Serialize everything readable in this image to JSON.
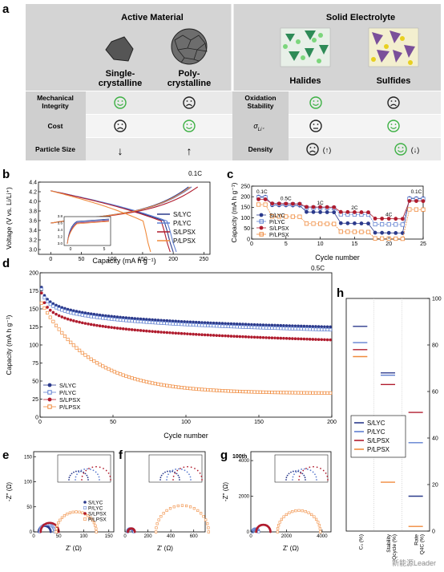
{
  "panel_a": {
    "label": "a",
    "active_material_header": "Active Material",
    "solid_electrolyte_header": "Solid Electrolyte",
    "col_single": "Single-\ncrystalline",
    "col_poly": "Poly-\ncrystalline",
    "col_halides": "Halides",
    "col_sulfides": "Sulfides",
    "rows_left": [
      {
        "label": "Mechanical\nIntegrity",
        "single": "happy",
        "poly": "sad"
      },
      {
        "label": "Cost",
        "single": "sad",
        "poly": "happy"
      },
      {
        "label": "Particle Size",
        "single": "↓",
        "poly": "↑"
      }
    ],
    "rows_right": [
      {
        "label": "Oxidation\nStability",
        "halides": "happy",
        "sulfides": "sad"
      },
      {
        "label": "σ",
        "sub": "Li⁺",
        "halides": "neutral",
        "sulfides": "happy"
      },
      {
        "label": "Density",
        "halides": "sad",
        "halides_note": "(↑)",
        "sulfides": "happy",
        "sulfides_note": "(↓)"
      }
    ],
    "colors": {
      "happy": "#3cb043",
      "header_bg": "#cfcfcf",
      "row_bg": "#e6e6e6"
    }
  },
  "chart_data": [
    {
      "panel": "b",
      "type": "line",
      "annotation": "0.1C",
      "xlabel": "Capacity (mA h g⁻¹)",
      "ylabel": "Voltage (V vs. Li/Li⁺)",
      "xlim": [
        -20,
        260
      ],
      "ylim": [
        2.9,
        4.4
      ],
      "xticks": [
        0,
        50,
        100,
        150,
        200,
        250
      ],
      "yticks": [
        3.0,
        3.2,
        3.4,
        3.6,
        3.8,
        4.0,
        4.2,
        4.4
      ],
      "series": [
        {
          "name": "S/LYC",
          "color": "#2b3a8c",
          "charge_end": 225,
          "discharge_end": 200
        },
        {
          "name": "P/LYC",
          "color": "#5f7fd0",
          "charge_end": 230,
          "discharge_end": 205
        },
        {
          "name": "S/LPSX",
          "color": "#b01c2e",
          "charge_end": 240,
          "discharge_end": 195
        },
        {
          "name": "P/LPSX",
          "color": "#f08a3c",
          "charge_end": 228,
          "discharge_end": 163
        }
      ],
      "inset": {
        "xticks": [
          0,
          5
        ],
        "yticks": [
          3.0,
          3.2,
          3.4,
          3.6,
          3.8
        ]
      }
    },
    {
      "panel": "c",
      "type": "scatter",
      "xlabel": "Cycle number",
      "ylabel": "Capacity (mA h g⁻¹)",
      "xlim": [
        0,
        25
      ],
      "ylim": [
        0,
        250
      ],
      "xticks": [
        0,
        5,
        10,
        15,
        20,
        25
      ],
      "yticks": [
        0,
        50,
        100,
        150,
        200,
        250
      ],
      "rate_labels": [
        {
          "text": "0.1C",
          "x": 1.5,
          "y": 215
        },
        {
          "text": "0.5C",
          "x": 5,
          "y": 183
        },
        {
          "text": "1C",
          "x": 10,
          "y": 162
        },
        {
          "text": "2C",
          "x": 15,
          "y": 140
        },
        {
          "text": "4C",
          "x": 20,
          "y": 108
        },
        {
          "text": "0.1C",
          "x": 24,
          "y": 215
        }
      ],
      "series": [
        {
          "name": "S/LYC",
          "color": "#2b3a8c",
          "marker": "filled-circle",
          "steps": [
            200,
            160,
            128,
            75,
            30,
            193
          ]
        },
        {
          "name": "P/LYC",
          "color": "#5f7fd0",
          "marker": "open-square",
          "steps": [
            197,
            165,
            148,
            117,
            70,
            190
          ]
        },
        {
          "name": "S/LPSX",
          "color": "#b01c2e",
          "marker": "filled-circle",
          "steps": [
            188,
            168,
            152,
            128,
            97,
            180
          ]
        },
        {
          "name": "P/LPSX",
          "color": "#f08a3c",
          "marker": "open-square",
          "steps": [
            163,
            107,
            73,
            35,
            3,
            140
          ]
        }
      ]
    },
    {
      "panel": "d",
      "type": "scatter",
      "annotation": "0.5C",
      "xlabel": "Cycle number",
      "ylabel": "Capacity (mA h g⁻¹)",
      "xlim": [
        0,
        200
      ],
      "ylim": [
        0,
        200
      ],
      "xticks": [
        0,
        50,
        100,
        150,
        200
      ],
      "yticks": [
        0,
        25,
        50,
        75,
        100,
        125,
        150,
        175,
        200
      ],
      "series": [
        {
          "name": "S/LYC",
          "color": "#2b3a8c",
          "marker": "filled-circle",
          "start": 180,
          "end": 125
        },
        {
          "name": "P/LYC",
          "color": "#5f7fd0",
          "marker": "open-square",
          "start": 177,
          "end": 121
        },
        {
          "name": "S/LPSX",
          "color": "#b01c2e",
          "marker": "filled-circle",
          "start": 172,
          "end": 107
        },
        {
          "name": "P/LPSX",
          "color": "#f08a3c",
          "marker": "open-square",
          "start": 158,
          "end": 33
        }
      ]
    },
    {
      "panel": "e",
      "type": "scatter",
      "annotation": "2nd",
      "xlabel": "Z' (Ω)",
      "ylabel": "-Z'' (Ω)",
      "xticks": [
        0,
        50,
        100,
        150
      ],
      "yticks": [
        0,
        50,
        100,
        150
      ],
      "series_names": [
        "S/LYC",
        "P/LYC",
        "S/LPSX",
        "P/LPSX"
      ]
    },
    {
      "panel": "f",
      "type": "scatter",
      "annotation": "10th",
      "xlabel": "Z' (Ω)",
      "ylabel": "-Z'' (Ω)",
      "xticks": [
        0,
        200,
        400,
        600
      ],
      "yticks": [
        0,
        200,
        400,
        600
      ]
    },
    {
      "panel": "g",
      "type": "scatter",
      "annotation": "100th",
      "xlabel": "Z' (Ω)",
      "ylabel": "-Z'' (Ω)",
      "xticks": [
        0,
        2000,
        4000
      ],
      "yticks": [
        0,
        2000,
        4000
      ]
    },
    {
      "panel": "h",
      "type": "line",
      "yticks": [
        0,
        20,
        40,
        60,
        80,
        100
      ],
      "categories": [
        "C₀ (%)",
        "Stability\nQcycle (%)",
        "Rate\nQ4C (%)"
      ],
      "series": [
        {
          "name": "S/LYC",
          "color": "#2b3a8c",
          "values": [
            88,
            68,
            15
          ]
        },
        {
          "name": "P/LYC",
          "color": "#5f7fd0",
          "values": [
            81,
            67,
            38
          ]
        },
        {
          "name": "S/LPSX",
          "color": "#b01c2e",
          "values": [
            78,
            63,
            51
          ]
        },
        {
          "name": "P/LPSX",
          "color": "#f08a3c",
          "values": [
            75,
            21,
            2
          ]
        }
      ]
    }
  ],
  "watermark": "新能源Leader"
}
